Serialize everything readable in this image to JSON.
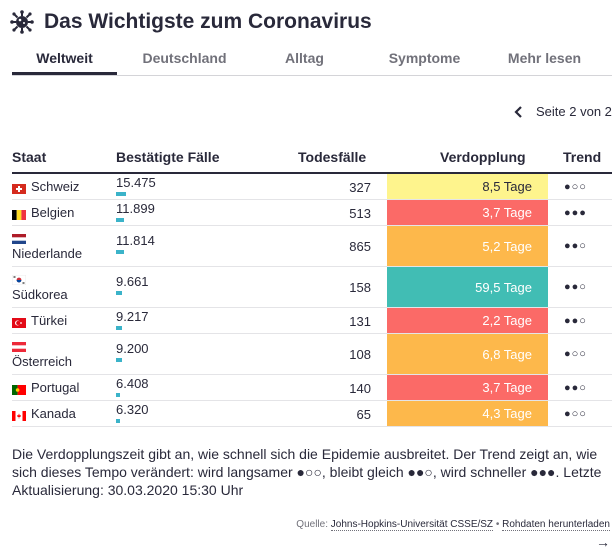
{
  "header": {
    "title": "Das Wichtigste zum Coronavirus",
    "icon": "virus-icon"
  },
  "tabs": [
    {
      "label": "Weltweit",
      "active": true
    },
    {
      "label": "Deutschland",
      "active": false
    },
    {
      "label": "Alltag",
      "active": false
    },
    {
      "label": "Symptome",
      "active": false
    },
    {
      "label": "Mehr lesen",
      "active": false
    }
  ],
  "pager": {
    "label": "Seite 2 von 2"
  },
  "table": {
    "columns": {
      "country": "Staat",
      "cases": "Bestätigte Fälle",
      "deaths": "Todesfälle",
      "doubling": "Verdopplung",
      "trend": "Trend"
    },
    "rows": [
      {
        "country": "Schweiz",
        "flag": "ch",
        "cases": "15.475",
        "cases_value": 15475,
        "deaths": "327",
        "doubling": "8,5 Tage",
        "doubling_color": "#fef48d",
        "trend": "●○○"
      },
      {
        "country": "Belgien",
        "flag": "be",
        "cases": "11.899",
        "cases_value": 11899,
        "deaths": "513",
        "doubling": "3,7 Tage",
        "doubling_color": "#fb6a67",
        "trend": "●●●"
      },
      {
        "country": "Niederlande",
        "flag": "nl",
        "cases": "11.814",
        "cases_value": 11814,
        "deaths": "865",
        "doubling": "5,2 Tage",
        "doubling_color": "#fdb84b",
        "trend": "●●○"
      },
      {
        "country": "Südkorea",
        "flag": "kr",
        "cases": "9.661",
        "cases_value": 9661,
        "deaths": "158",
        "doubling": "59,5 Tage",
        "doubling_color": "#41bdb4",
        "trend": "●●○"
      },
      {
        "country": "Türkei",
        "flag": "tr",
        "cases": "9.217",
        "cases_value": 9217,
        "deaths": "131",
        "doubling": "2,2 Tage",
        "doubling_color": "#fb6a67",
        "trend": "●●○"
      },
      {
        "country": "Österreich",
        "flag": "at",
        "cases": "9.200",
        "cases_value": 9200,
        "deaths": "108",
        "doubling": "6,8 Tage",
        "doubling_color": "#fdb84b",
        "trend": "●○○"
      },
      {
        "country": "Portugal",
        "flag": "pt",
        "cases": "6.408",
        "cases_value": 6408,
        "deaths": "140",
        "doubling": "3,7 Tage",
        "doubling_color": "#fb6a67",
        "trend": "●●○"
      },
      {
        "country": "Kanada",
        "flag": "ca",
        "cases": "6.320",
        "cases_value": 6320,
        "deaths": "65",
        "doubling": "4,3 Tage",
        "doubling_color": "#fdb84b",
        "trend": "●○○"
      }
    ]
  },
  "note": "Die Verdopplungszeit gibt an, wie schnell sich die Epidemie ausbreitet. Der Trend zeigt an, wie sich dieses Tempo verändert: wird langsamer ●○○, bleibt gleich ●●○, wird schneller ●●●. Letzte Aktualisierung: 30.03.2020 15:30 Uhr",
  "source": {
    "prefix": "Quelle:",
    "link1": "Johns-Hopkins-Universität CSSE/SZ",
    "separator": "•",
    "link2": "Rohdaten herunterladen"
  },
  "arrow": "→"
}
